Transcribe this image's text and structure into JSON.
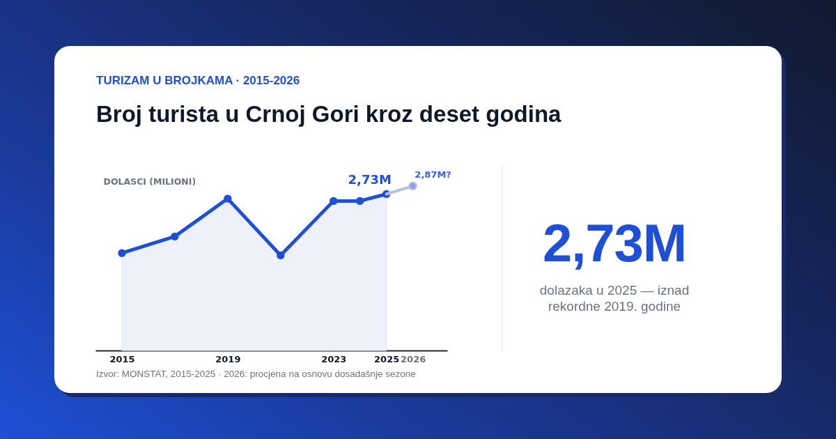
{
  "chart_data": {
    "type": "area",
    "subtitle": "TURIZAM U BROJKAMA · 2015-2026",
    "title": "Broj turista u Crnoj Gori kroz deset godina",
    "ylabel": "DOLASCI (MILIONI)",
    "xlim": [
      2014,
      2027.3
    ],
    "xticks": [
      2015,
      2019,
      2023,
      2025,
      2026
    ],
    "tick_labels": "x",
    "marker": "circle",
    "series": [
      {
        "color": "#1e4fd6",
        "x": [
          2015,
          2017,
          2019,
          2021,
          2023,
          2024,
          2025
        ],
        "values": [
          1.7,
          1.99,
          2.65,
          1.66,
          2.61,
          2.61,
          2.73
        ],
        "value_labels": [
          null,
          null,
          null,
          null,
          null,
          null,
          "2,73M"
        ]
      },
      {
        "type": "line",
        "color": "#b9bfdd",
        "x": [
          2025,
          2026
        ],
        "values": [
          2.73,
          2.87
        ],
        "value_labels": [
          null,
          "2,87M?"
        ]
      }
    ],
    "annotations": [
      "2,73M",
      "dolazaka u 2025 — iznad rekordne 2019. godine",
      "Izvor: MONSTAT, 2015-2025 · 2026: procjena na osnovu dosadašnje sezone"
    ]
  }
}
